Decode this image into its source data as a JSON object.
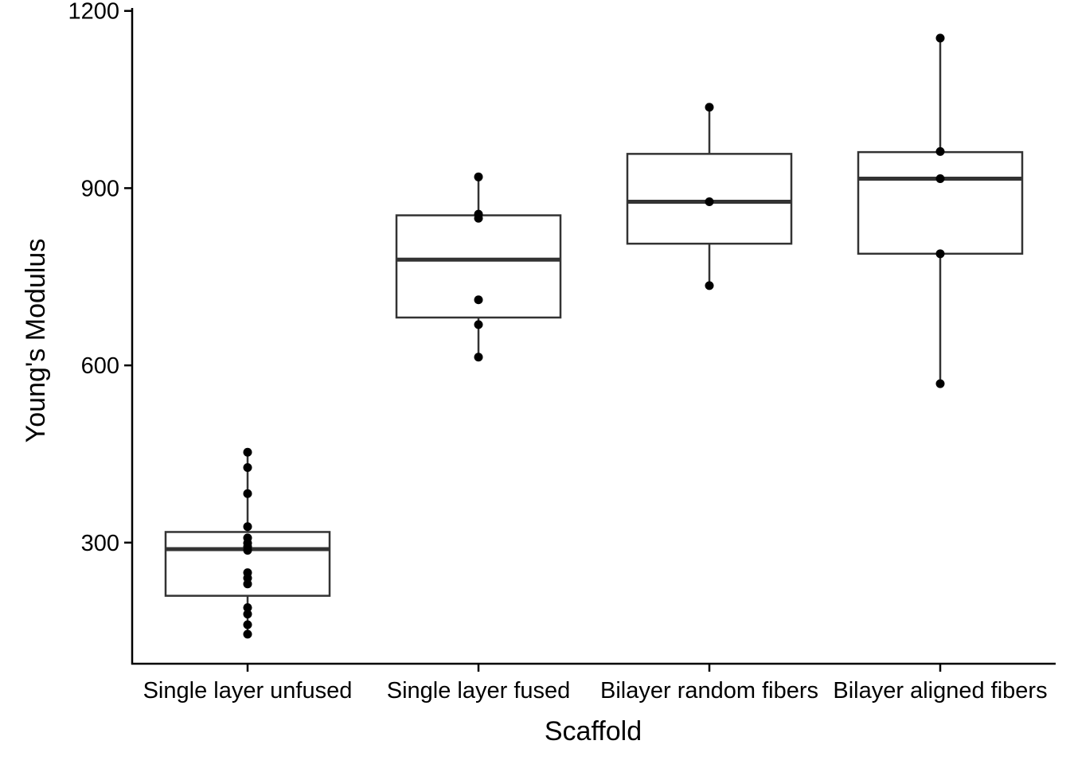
{
  "chart_data": {
    "type": "box",
    "title": "",
    "xlabel": "Scaffold",
    "ylabel": "Young's Modulus",
    "ylim": [
      95,
      1205
    ],
    "yticks": [
      300,
      600,
      900,
      1200
    ],
    "ytick_labels": [
      "300",
      "600",
      "900",
      "1200"
    ],
    "grid": false,
    "legend": "none",
    "categories": [
      "Single layer unfused",
      "Single layer fused",
      "Bilayer random fibers",
      "Bilayer aligned fibers"
    ],
    "boxes": [
      {
        "category": "Single layer unfused",
        "q1": 210,
        "median": 289,
        "q3": 318,
        "whisker_low": 145,
        "whisker_high": 453
      },
      {
        "category": "Single layer fused",
        "q1": 681,
        "median": 779,
        "q3": 854,
        "whisker_low": 614,
        "whisker_high": 919
      },
      {
        "category": "Bilayer random fibers",
        "q1": 806,
        "median": 877,
        "q3": 958,
        "whisker_low": 735,
        "whisker_high": 1037
      },
      {
        "category": "Bilayer aligned fibers",
        "q1": 789,
        "median": 916,
        "q3": 961,
        "whisker_low": 569,
        "whisker_high": 1154
      }
    ],
    "points": [
      {
        "category": "Single layer unfused",
        "values": [
          453,
          427,
          383,
          327,
          308,
          299,
          293,
          287,
          249,
          240,
          230,
          190,
          179,
          161,
          145
        ]
      },
      {
        "category": "Single layer fused",
        "values": [
          919,
          856,
          849,
          711,
          669,
          614
        ]
      },
      {
        "category": "Bilayer random fibers",
        "values": [
          1037,
          877,
          735
        ]
      },
      {
        "category": "Bilayer aligned fibers",
        "values": [
          1154,
          962,
          916,
          789,
          569
        ]
      }
    ],
    "colors": {
      "box_line": "#333333",
      "median": "#333333",
      "point": "#000000",
      "axis": "#000000"
    }
  }
}
